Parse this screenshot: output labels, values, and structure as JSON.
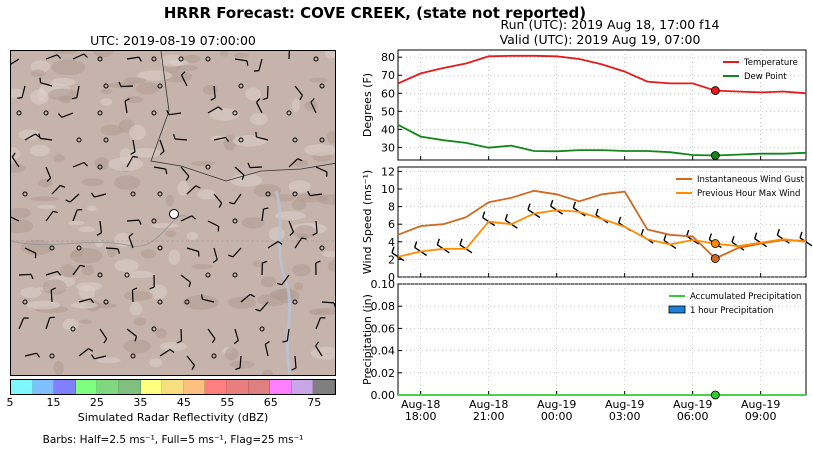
{
  "header": {
    "title": "HRRR Forecast: COVE CREEK, (state not reported)",
    "run": "Run (UTC): 2019 Aug 18, 17:00 f14",
    "valid": "Valid (UTC): 2019 Aug 19, 07:00"
  },
  "map": {
    "title": "UTC: 2019-08-19 07:00:00",
    "colorbar_label": "Simulated Radar Reflectivity (dBZ)",
    "colorbar_ticks": [
      "5",
      "15",
      "25",
      "35",
      "45",
      "55",
      "65",
      "75"
    ],
    "colorbar_colors": [
      "#7ff7ff",
      "#7fbfff",
      "#7f7fff",
      "#7fff7f",
      "#7fd77f",
      "#7fbf7f",
      "#ffff7f",
      "#f7df7f",
      "#ffbf7f",
      "#ff7f7f",
      "#e77f7f",
      "#df7f7f",
      "#ff7fff",
      "#c7a7e7",
      "#7f7f7f"
    ],
    "barbs_note": "Barbs: Half=2.5 ms⁻¹, Full=5 ms⁻¹, Flag=25 ms⁻¹",
    "colors": {
      "terrain": "#c6b3ab",
      "terrain_light": "#ddd1cc",
      "road": "#999999",
      "station": "#ffffff"
    }
  },
  "chart_data": [
    {
      "type": "line",
      "ylabel": "Degrees (F)",
      "ylim": [
        23,
        84
      ],
      "yticks": [
        30,
        40,
        50,
        60,
        70,
        80
      ],
      "grid": true,
      "legend_position": "top-right",
      "x": [
        "2019-08-18 17:00",
        "2019-08-18 18:00",
        "2019-08-18 19:00",
        "2019-08-18 20:00",
        "2019-08-18 21:00",
        "2019-08-18 22:00",
        "2019-08-18 23:00",
        "2019-08-19 00:00",
        "2019-08-19 01:00",
        "2019-08-19 02:00",
        "2019-08-19 03:00",
        "2019-08-19 04:00",
        "2019-08-19 05:00",
        "2019-08-19 06:00",
        "2019-08-19 07:00",
        "2019-08-19 08:00",
        "2019-08-19 09:00",
        "2019-08-19 10:00",
        "2019-08-19 11:00"
      ],
      "series": [
        {
          "name": "Temperature",
          "color": "#e41a1c",
          "values": [
            65.5,
            71,
            74,
            76.5,
            80.5,
            80.8,
            80.8,
            80.5,
            79,
            76,
            72,
            66.5,
            65.5,
            65.5,
            61.5,
            61,
            60.5,
            61,
            60
          ]
        },
        {
          "name": "Dew Point",
          "color": "#11871a",
          "values": [
            42.5,
            36,
            34,
            32.5,
            29.8,
            31,
            28,
            27.8,
            28.5,
            28.5,
            28,
            28,
            27.3,
            25.8,
            25.5,
            26,
            26.5,
            26.5,
            27
          ]
        }
      ],
      "highlight_x": "2019-08-19 07:00"
    },
    {
      "type": "line",
      "ylabel": "Wind Speed (ms⁻¹)",
      "ylim": [
        0,
        12.5
      ],
      "yticks": [
        0,
        2,
        4,
        6,
        8,
        10,
        12
      ],
      "grid": true,
      "legend_position": "top-right",
      "x": [
        "2019-08-18 17:00",
        "2019-08-18 18:00",
        "2019-08-18 19:00",
        "2019-08-18 20:00",
        "2019-08-18 21:00",
        "2019-08-18 22:00",
        "2019-08-18 23:00",
        "2019-08-19 00:00",
        "2019-08-19 01:00",
        "2019-08-19 02:00",
        "2019-08-19 03:00",
        "2019-08-19 04:00",
        "2019-08-19 05:00",
        "2019-08-19 06:00",
        "2019-08-19 07:00",
        "2019-08-19 08:00",
        "2019-08-19 09:00",
        "2019-08-19 10:00",
        "2019-08-19 11:00"
      ],
      "series": [
        {
          "name": "Instantaneous Wind Gust",
          "color": "#d2691e",
          "values": [
            4.8,
            5.8,
            6,
            6.8,
            8.5,
            9,
            9.8,
            9.4,
            8.6,
            9.4,
            9.7,
            5.4,
            4.8,
            4.6,
            2.1,
            3.3,
            3.8,
            4.2,
            4.1
          ]
        },
        {
          "name": "Previous Hour Max Wind",
          "color": "#ff8c00",
          "values": [
            2.3,
            2.9,
            3.2,
            3.2,
            6.3,
            6.0,
            7.2,
            7.6,
            7.4,
            6.6,
            5.7,
            4.3,
            3.7,
            4.2,
            3.8,
            3.5,
            3.9,
            4.3,
            4.0
          ]
        }
      ],
      "highlight_x": "2019-08-19 07:00"
    },
    {
      "type": "bar",
      "ylabel": "Precipitation (in)",
      "ylim": [
        0,
        0.1
      ],
      "yticks": [
        "0.00",
        "0.02",
        "0.04",
        "0.06",
        "0.08",
        "0.10"
      ],
      "xticks": [
        {
          "line1": "Aug-18",
          "line2": "18:00",
          "x": "2019-08-18 18:00"
        },
        {
          "line1": "Aug-18",
          "line2": "21:00",
          "x": "2019-08-18 21:00"
        },
        {
          "line1": "Aug-19",
          "line2": "00:00",
          "x": "2019-08-19 00:00"
        },
        {
          "line1": "Aug-19",
          "line2": "03:00",
          "x": "2019-08-19 03:00"
        },
        {
          "line1": "Aug-19",
          "line2": "06:00",
          "x": "2019-08-19 06:00"
        },
        {
          "line1": "Aug-19",
          "line2": "09:00",
          "x": "2019-08-19 09:00"
        }
      ],
      "grid": true,
      "legend_position": "top-right",
      "x": [
        "2019-08-18 17:00",
        "2019-08-18 18:00",
        "2019-08-18 19:00",
        "2019-08-18 20:00",
        "2019-08-18 21:00",
        "2019-08-18 22:00",
        "2019-08-18 23:00",
        "2019-08-19 00:00",
        "2019-08-19 01:00",
        "2019-08-19 02:00",
        "2019-08-19 03:00",
        "2019-08-19 04:00",
        "2019-08-19 05:00",
        "2019-08-19 06:00",
        "2019-08-19 07:00",
        "2019-08-19 08:00",
        "2019-08-19 09:00",
        "2019-08-19 10:00",
        "2019-08-19 11:00"
      ],
      "series": [
        {
          "name": "Accumulated Precipitation",
          "color": "#32cd32",
          "values": [
            0,
            0,
            0,
            0,
            0,
            0,
            0,
            0,
            0,
            0,
            0,
            0,
            0,
            0,
            0,
            0,
            0,
            0,
            0
          ]
        },
        {
          "name": "1 hour Precipitation",
          "color": "#1e7fd6",
          "values": [
            0,
            0,
            0,
            0,
            0,
            0,
            0,
            0,
            0,
            0,
            0,
            0,
            0,
            0,
            0,
            0,
            0,
            0,
            0
          ]
        }
      ],
      "highlight_x": "2019-08-19 07:00"
    }
  ]
}
